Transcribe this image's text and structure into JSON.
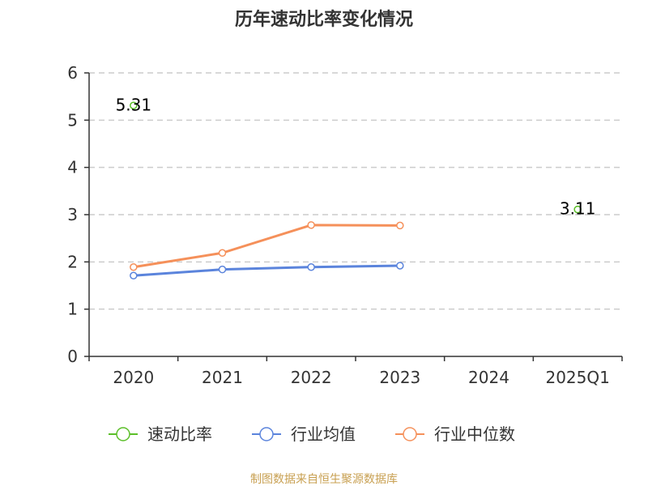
{
  "chart_data": {
    "type": "line",
    "title": "历年速动比率变化情况",
    "categories": [
      "2020",
      "2021",
      "2022",
      "2023",
      "2024",
      "2025Q1"
    ],
    "ylim": [
      0,
      6
    ],
    "yticks": [
      0,
      1,
      2,
      3,
      4,
      5,
      6
    ],
    "grid": true,
    "legend_position": "bottom",
    "series": [
      {
        "name": "速动比率",
        "color": "#5bbf28",
        "values": [
          5.31,
          null,
          null,
          null,
          null,
          3.11
        ],
        "labels": [
          "5.31",
          null,
          null,
          null,
          null,
          "3.11"
        ]
      },
      {
        "name": "行业均值",
        "color": "#5b84dc",
        "values": [
          1.71,
          1.84,
          1.89,
          1.92,
          null,
          null
        ]
      },
      {
        "name": "行业中位数",
        "color": "#f5905a",
        "values": [
          1.89,
          2.19,
          2.78,
          2.77,
          null,
          null
        ]
      }
    ],
    "source": "制图数据来自恒生聚源数据库"
  }
}
